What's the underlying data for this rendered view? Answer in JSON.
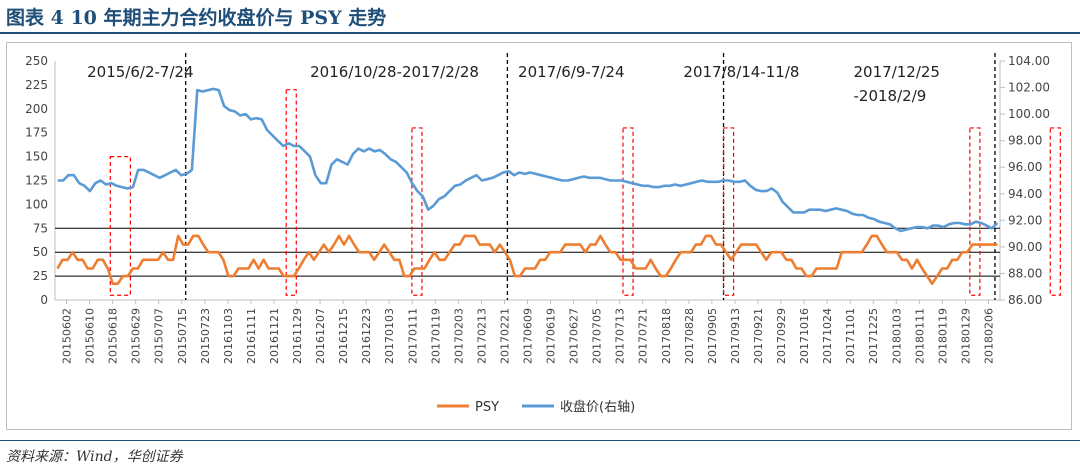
{
  "figure": {
    "title": "图表 4   10 年期主力合约收盘价与 PSY 走势",
    "source": "资料来源：Wind，华创证券"
  },
  "colors": {
    "price_line": "#5b9bd5",
    "psy_line": "#ed7d31",
    "highlight_box": "#ff0000",
    "period_divider": "#000000",
    "title_blue": "#1f4e79"
  },
  "chart_data": {
    "type": "line",
    "title": "",
    "xlabel": "",
    "ylabel": "",
    "y_left_ticks": [
      "0",
      "25",
      "50",
      "75",
      "100",
      "125",
      "150",
      "175",
      "200",
      "225",
      "250"
    ],
    "y_right_ticks": [
      "86.00",
      "88.00",
      "90.00",
      "92.00",
      "94.00",
      "96.00",
      "98.00",
      "100.00",
      "102.00",
      "104.00"
    ],
    "ylim_left": [
      0,
      250
    ],
    "ylim_right": [
      86,
      104
    ],
    "x_tick_labels": [
      "20150602",
      "20150610",
      "20150618",
      "20150629",
      "20150707",
      "20150715",
      "20150723",
      "20161103",
      "20161111",
      "20161121",
      "20161129",
      "20161207",
      "20161215",
      "20161223",
      "20170103",
      "20170111",
      "20170119",
      "20170203",
      "20170213",
      "20170221",
      "20170609",
      "20170619",
      "20170627",
      "20170705",
      "20170713",
      "20170721",
      "20170818",
      "20170828",
      "20170905",
      "20170913",
      "20170921",
      "20170929",
      "20171016",
      "20171024",
      "20171101",
      "20171225",
      "20180103",
      "20180111",
      "20180119",
      "20180129",
      "20180206"
    ],
    "reference_lines_left": [
      25,
      50,
      75
    ],
    "grid": false,
    "legend_position": "bottom",
    "periods": [
      {
        "label": "2015/6/2-7/24"
      },
      {
        "label": "2016/10/28-2017/2/28"
      },
      {
        "label": "2017/6/9-7/24"
      },
      {
        "label": "2017/8/14-11/8"
      },
      {
        "label": "2017/12/25",
        "label2": "-2018/2/9"
      }
    ],
    "series": [
      {
        "name": "PSY",
        "axis": "left",
        "values": [
          33,
          42,
          42,
          50,
          42,
          42,
          33,
          33,
          42,
          42,
          33,
          17,
          17,
          25,
          25,
          33,
          33,
          42,
          42,
          42,
          42,
          50,
          42,
          42,
          67,
          58,
          58,
          67,
          67,
          58,
          50,
          50,
          50,
          42,
          25,
          25,
          33,
          33,
          33,
          42,
          33,
          42,
          33,
          33,
          33,
          25,
          25,
          25,
          33,
          42,
          50,
          42,
          50,
          58,
          50,
          58,
          67,
          58,
          67,
          58,
          50,
          50,
          50,
          42,
          50,
          58,
          50,
          42,
          42,
          25,
          25,
          33,
          33,
          33,
          42,
          50,
          42,
          42,
          50,
          58,
          58,
          67,
          67,
          67,
          58,
          58,
          58,
          50,
          58,
          50,
          42,
          25,
          25,
          33,
          33,
          33,
          42,
          42,
          50,
          50,
          50,
          58,
          58,
          58,
          58,
          50,
          58,
          58,
          67,
          58,
          50,
          50,
          42,
          42,
          42,
          33,
          33,
          33,
          42,
          33,
          25,
          25,
          33,
          42,
          50,
          50,
          50,
          58,
          58,
          67,
          67,
          58,
          58,
          50,
          42,
          50,
          58,
          58,
          58,
          58,
          50,
          42,
          50,
          50,
          50,
          42,
          42,
          33,
          33,
          25,
          25,
          33,
          33,
          33,
          33,
          33,
          50,
          50,
          50,
          50,
          50,
          58,
          67,
          67,
          58,
          50,
          50,
          50,
          42,
          42,
          33,
          42,
          33,
          25,
          17,
          25,
          33,
          33,
          42,
          42,
          50,
          50,
          58,
          58,
          58,
          58,
          58,
          58
        ]
      },
      {
        "name": "收盘价(右轴)",
        "axis": "right",
        "values": [
          95.0,
          95.0,
          95.4,
          95.4,
          94.8,
          94.6,
          94.2,
          94.8,
          95.0,
          94.7,
          94.8,
          94.6,
          94.5,
          94.4,
          94.5,
          95.8,
          95.8,
          95.6,
          95.4,
          95.2,
          95.4,
          95.6,
          95.8,
          95.4,
          95.5,
          95.8,
          101.8,
          101.7,
          101.8,
          101.9,
          101.8,
          100.6,
          100.3,
          100.2,
          99.9,
          100.0,
          99.6,
          99.7,
          99.6,
          98.8,
          98.4,
          98.0,
          97.6,
          97.8,
          97.6,
          97.6,
          97.2,
          96.8,
          95.4,
          94.8,
          94.8,
          96.2,
          96.6,
          96.4,
          96.2,
          97.0,
          97.4,
          97.2,
          97.4,
          97.2,
          97.3,
          97.0,
          96.6,
          96.4,
          96.0,
          95.6,
          94.8,
          94.2,
          93.8,
          92.8,
          93.1,
          93.6,
          93.8,
          94.2,
          94.6,
          94.7,
          95.0,
          95.2,
          95.4,
          95.0,
          95.1,
          95.2,
          95.4,
          95.6,
          95.7,
          95.4,
          95.6,
          95.5,
          95.6,
          95.5,
          95.4,
          95.3,
          95.2,
          95.1,
          95.0,
          95.0,
          95.1,
          95.2,
          95.3,
          95.2,
          95.2,
          95.2,
          95.1,
          95.0,
          95.0,
          95.0,
          94.9,
          94.8,
          94.7,
          94.6,
          94.6,
          94.5,
          94.5,
          94.6,
          94.6,
          94.7,
          94.6,
          94.7,
          94.8,
          94.9,
          95.0,
          94.9,
          94.9,
          94.9,
          95.0,
          95.0,
          94.9,
          94.9,
          95.0,
          94.6,
          94.3,
          94.2,
          94.2,
          94.4,
          94.1,
          93.4,
          93.0,
          92.6,
          92.6,
          92.6,
          92.8,
          92.8,
          92.8,
          92.7,
          92.8,
          92.9,
          92.8,
          92.7,
          92.5,
          92.4,
          92.4,
          92.2,
          92.1,
          91.9,
          91.8,
          91.7,
          91.4,
          91.2,
          91.3,
          91.4,
          91.5,
          91.5,
          91.4,
          91.6,
          91.6,
          91.5,
          91.7,
          91.8,
          91.8,
          91.7,
          91.7,
          91.9,
          91.8,
          91.6,
          91.4,
          91.8
        ]
      }
    ]
  }
}
